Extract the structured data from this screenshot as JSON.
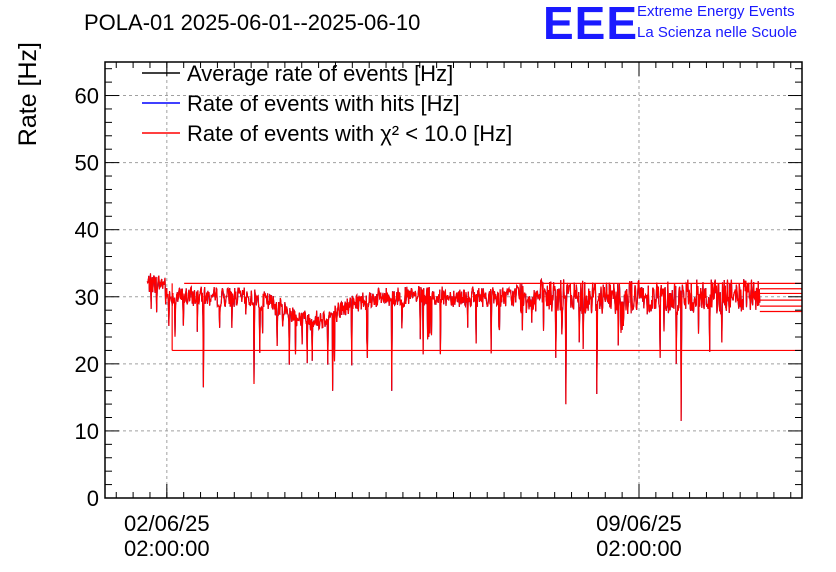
{
  "title": "POLA-01 2025-06-01--2025-06-10",
  "logo": {
    "mark": "EEE",
    "line1": "Extreme Energy Events",
    "line2": "La Scienza nelle Scuole",
    "color": "#1a1aff"
  },
  "chart_data": {
    "type": "line",
    "title": "POLA-01 2025-06-01--2025-06-10",
    "ylabel": "Rate [Hz]",
    "xlabel": "",
    "ylim": [
      0,
      65
    ],
    "xlim": [
      "2025-06-01T04:00:00",
      "2025-06-11T12:00:00"
    ],
    "grid": true,
    "legend_position": "top-left",
    "y_ticks": [
      "0",
      "10",
      "20",
      "30",
      "40",
      "50",
      "60"
    ],
    "x_ticks": [
      {
        "t": "2025-06-02T02:00:00",
        "line1": "02/06/25",
        "line2": "02:00:00"
      },
      {
        "t": "2025-06-09T02:00:00",
        "line1": "09/06/25",
        "line2": "02:00:00"
      }
    ],
    "series": [
      {
        "name": "Average rate of events [Hz]",
        "color": "#000000"
      },
      {
        "name": "Rate of events with hits [Hz]",
        "color": "#0000ff"
      },
      {
        "name": "Rate of events with χ² < 10.0 [Hz]",
        "color": "#ff0000"
      }
    ],
    "data_start": "2025-06-01T19:00:00",
    "data_end": "2025-06-10T21:00:00",
    "baseline_rate": 30,
    "min_dips": [
      {
        "t": "2025-06-02T15:00:00",
        "y": 16.5
      },
      {
        "t": "2025-06-03T09:00:00",
        "y": 17.0
      },
      {
        "t": "2025-06-04T13:00:00",
        "y": 16.0
      },
      {
        "t": "2025-06-05T10:00:00",
        "y": 16.0
      },
      {
        "t": "2025-06-08T00:00:00",
        "y": 14.0
      },
      {
        "t": "2025-06-08T11:00:00",
        "y": 15.5
      },
      {
        "t": "2025-06-09T17:00:00",
        "y": 11.5
      }
    ]
  }
}
